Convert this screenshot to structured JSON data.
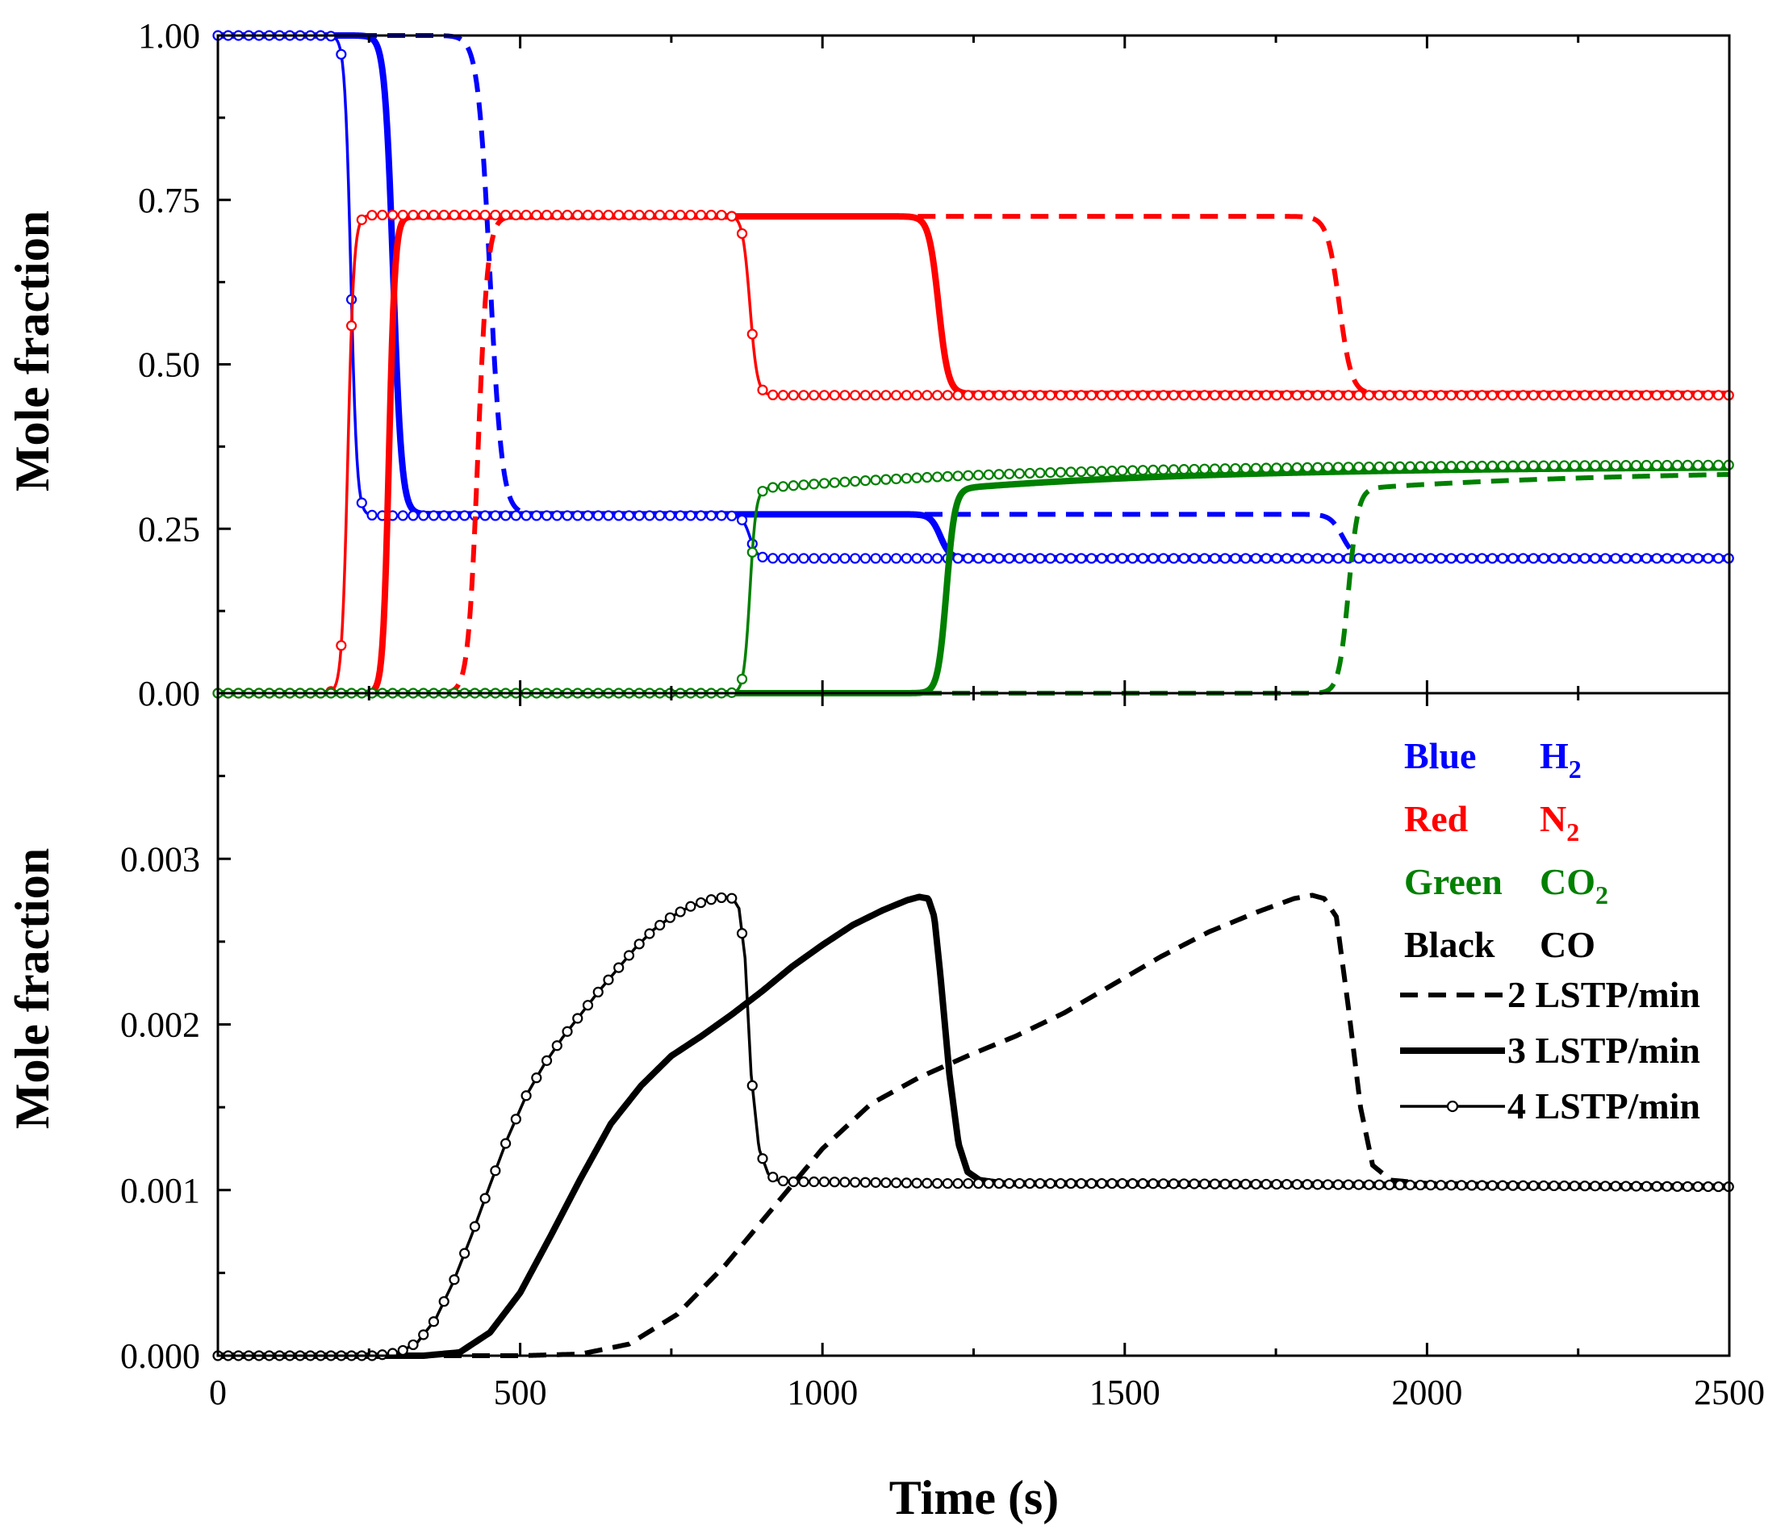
{
  "chart_data": [
    {
      "type": "line",
      "panel": "top",
      "ylabel": "Mole fraction",
      "xlabel": "Time (s)",
      "xlim": [
        0,
        2500
      ],
      "ylim": [
        0,
        1
      ],
      "xticks": [
        0,
        500,
        1000,
        1500,
        2000,
        2500
      ],
      "xtick_labels": [
        "0",
        "500",
        "1000",
        "1500",
        "2000",
        "2500"
      ],
      "yticks": [
        0,
        0.25,
        0.5,
        0.75,
        1.0
      ],
      "ytick_labels": [
        "0.00",
        "0.25",
        "0.50",
        "0.75",
        "1.00"
      ],
      "series": [
        {
          "name": "H2 2 LSTP/min",
          "species": "H2",
          "color": "#0000ff",
          "style": "dash",
          "kind": "fall",
          "t0": 450,
          "w": 10,
          "start": 1.0,
          "end": 0.272,
          "t1": 1860,
          "w1": 10,
          "end2": 0.205
        },
        {
          "name": "H2 3 LSTP/min",
          "species": "H2",
          "color": "#0000ff",
          "style": "thick",
          "kind": "fall",
          "t0": 290,
          "w": 7,
          "start": 1.0,
          "end": 0.272,
          "t1": 1195,
          "w1": 8,
          "end2": 0.205
        },
        {
          "name": "H2 4 LSTP/min",
          "species": "H2",
          "color": "#0000ff",
          "style": "marker",
          "kind": "fall",
          "t0": 220,
          "w": 5,
          "start": 1.0,
          "end": 0.27,
          "t1": 880,
          "w1": 6,
          "end2": 0.205
        },
        {
          "name": "N2 2 LSTP/min",
          "species": "N2",
          "color": "#ff0000",
          "style": "dash",
          "kind": "rise",
          "t0": 430,
          "w": 8,
          "start": 0.0,
          "end": 0.725,
          "t1": 1855,
          "w1": 10,
          "end2": 0.455
        },
        {
          "name": "N2 3 LSTP/min",
          "species": "N2",
          "color": "#ff0000",
          "style": "thick",
          "kind": "rise",
          "t0": 283,
          "w": 5,
          "start": 0.0,
          "end": 0.725,
          "t1": 1192,
          "w1": 8,
          "end2": 0.455
        },
        {
          "name": "N2 4 LSTP/min",
          "species": "N2",
          "color": "#ff0000",
          "style": "marker",
          "kind": "rise",
          "t0": 215,
          "w": 5,
          "start": 0.0,
          "end": 0.727,
          "t1": 880,
          "w1": 6,
          "end2": 0.453
        },
        {
          "name": "CO2 2 LSTP/min",
          "species": "CO2",
          "color": "#008000",
          "style": "dash",
          "kind": "step",
          "t0": 1870,
          "w": 8,
          "start": 0.0,
          "end": 0.31,
          "final": 0.34
        },
        {
          "name": "CO2 3 LSTP/min",
          "species": "CO2",
          "color": "#008000",
          "style": "thick",
          "kind": "step",
          "t0": 1205,
          "w": 7,
          "start": 0.0,
          "end": 0.31,
          "final": 0.345
        },
        {
          "name": "CO2 4 LSTP/min",
          "species": "CO2",
          "color": "#008000",
          "style": "marker",
          "kind": "step",
          "t0": 880,
          "w": 5,
          "start": 0.0,
          "end": 0.31,
          "final": 0.348
        }
      ]
    },
    {
      "type": "line",
      "panel": "bottom",
      "ylabel": "Mole fraction",
      "xlabel": "Time (s)",
      "xlim": [
        0,
        2500
      ],
      "ylim": [
        0,
        0.004
      ],
      "xticks": [
        0,
        500,
        1000,
        1500,
        2000,
        2500
      ],
      "xtick_labels": [
        "0",
        "500",
        "1000",
        "1500",
        "2000",
        "2500"
      ],
      "yticks": [
        0,
        0.001,
        0.002,
        0.003
      ],
      "ytick_labels": [
        "0.000",
        "0.001",
        "0.002",
        "0.003"
      ],
      "series": [
        {
          "name": "CO 2 LSTP/min",
          "species": "CO",
          "color": "#000000",
          "style": "dash",
          "x": [
            0,
            500,
            600,
            680,
            760,
            840,
            920,
            1000,
            1080,
            1160,
            1240,
            1320,
            1400,
            1480,
            1560,
            1640,
            1720,
            1780,
            1810,
            1830,
            1850,
            1870,
            1890,
            1910,
            1940,
            2000,
            2200,
            2500
          ],
          "y": [
            0,
            0,
            1e-05,
            7e-05,
            0.00025,
            0.00055,
            0.0009,
            0.00125,
            0.00152,
            0.00168,
            0.00181,
            0.00193,
            0.00207,
            0.00224,
            0.00241,
            0.00256,
            0.00268,
            0.00276,
            0.00278,
            0.00276,
            0.00265,
            0.0021,
            0.0015,
            0.00115,
            0.00106,
            0.00104,
            0.00103,
            0.00102
          ]
        },
        {
          "name": "CO 3 LSTP/min",
          "species": "CO",
          "color": "#000000",
          "style": "thick",
          "x": [
            0,
            340,
            400,
            450,
            500,
            550,
            600,
            650,
            700,
            750,
            800,
            850,
            900,
            950,
            1000,
            1050,
            1100,
            1140,
            1160,
            1175,
            1185,
            1195,
            1210,
            1225,
            1240,
            1260,
            1300,
            1500,
            2500
          ],
          "y": [
            0,
            0,
            2e-05,
            0.00014,
            0.00038,
            0.00072,
            0.00107,
            0.0014,
            0.00163,
            0.00181,
            0.00193,
            0.00206,
            0.0022,
            0.00235,
            0.00248,
            0.0026,
            0.00269,
            0.00275,
            0.00277,
            0.00276,
            0.00265,
            0.0023,
            0.0017,
            0.00128,
            0.00111,
            0.00106,
            0.00104,
            0.00104,
            0.00102
          ]
        },
        {
          "name": "CO 4 LSTP/min",
          "species": "CO",
          "color": "#000000",
          "style": "marker",
          "x": [
            0,
            260,
            300,
            330,
            360,
            390,
            420,
            450,
            480,
            510,
            540,
            570,
            600,
            630,
            660,
            690,
            720,
            750,
            780,
            810,
            840,
            852,
            862,
            872,
            882,
            895,
            910,
            925,
            945,
            1000,
            1200,
            1500,
            2000,
            2500
          ],
          "y": [
            0,
            0,
            2e-05,
            8e-05,
            0.00022,
            0.00045,
            0.00073,
            0.00103,
            0.00132,
            0.00157,
            0.00176,
            0.00192,
            0.00206,
            0.0022,
            0.00233,
            0.00246,
            0.00257,
            0.00265,
            0.00271,
            0.00275,
            0.00277,
            0.00276,
            0.0027,
            0.0024,
            0.0017,
            0.00125,
            0.0011,
            0.00106,
            0.00105,
            0.00105,
            0.00104,
            0.00104,
            0.00103,
            0.00102
          ]
        }
      ]
    }
  ],
  "legend": {
    "color_key": [
      {
        "color_word": "Blue",
        "species_main": "H",
        "species_sub": "2",
        "color": "#0000ff"
      },
      {
        "color_word": "Red",
        "species_main": "N",
        "species_sub": "2",
        "color": "#ff0000"
      },
      {
        "color_word": "Green",
        "species_main": "CO",
        "species_sub": "2",
        "color": "#008000"
      },
      {
        "color_word": "Black",
        "species_main": "CO",
        "species_sub": "",
        "color": "#000000"
      }
    ],
    "line_key": [
      {
        "label": "2 LSTP/min",
        "style": "dash"
      },
      {
        "label": "3 LSTP/min",
        "style": "thick"
      },
      {
        "label": "4 LSTP/min",
        "style": "marker"
      }
    ]
  }
}
